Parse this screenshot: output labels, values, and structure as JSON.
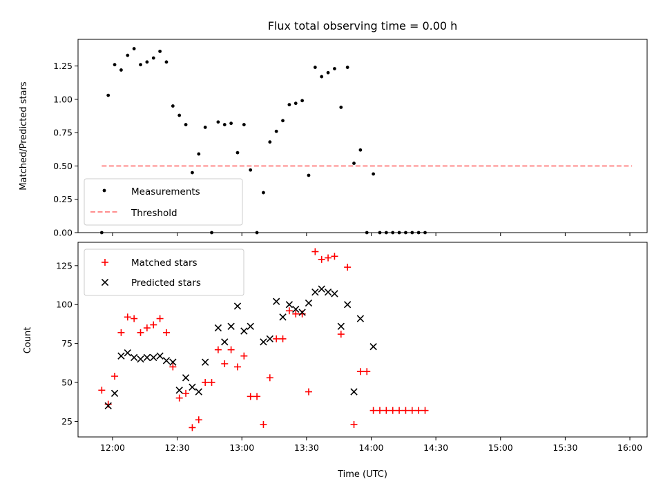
{
  "chart_data": [
    {
      "type": "scatter",
      "title": "Flux total observing time = 0.00 h",
      "xlabel": "",
      "ylabel": "Matched/Predicted stars",
      "ylim": [
        0,
        1.45
      ],
      "yticks": [
        "0.00",
        "0.25",
        "0.50",
        "0.75",
        "1.00",
        "1.25"
      ],
      "yticks_values": [
        0,
        0.25,
        0.5,
        0.75,
        1.0,
        1.25
      ],
      "legend_position": "lower-left",
      "grid": false,
      "series": [
        {
          "name": "Measurements",
          "marker": "dot",
          "color": "#000000",
          "points": [
            [
              "11:55",
              0.0
            ],
            [
              "11:58",
              1.03
            ],
            [
              "12:01",
              1.26
            ],
            [
              "12:04",
              1.22
            ],
            [
              "12:07",
              1.33
            ],
            [
              "12:10",
              1.38
            ],
            [
              "12:13",
              1.26
            ],
            [
              "12:16",
              1.28
            ],
            [
              "12:19",
              1.31
            ],
            [
              "12:22",
              1.36
            ],
            [
              "12:25",
              1.28
            ],
            [
              "12:28",
              0.95
            ],
            [
              "12:31",
              0.88
            ],
            [
              "12:34",
              0.81
            ],
            [
              "12:37",
              0.45
            ],
            [
              "12:40",
              0.59
            ],
            [
              "12:43",
              0.79
            ],
            [
              "12:46",
              0.0
            ],
            [
              "12:49",
              0.83
            ],
            [
              "12:52",
              0.81
            ],
            [
              "12:55",
              0.82
            ],
            [
              "12:58",
              0.6
            ],
            [
              "13:01",
              0.81
            ],
            [
              "13:04",
              0.47
            ],
            [
              "13:07",
              0.0
            ],
            [
              "13:10",
              0.3
            ],
            [
              "13:13",
              0.68
            ],
            [
              "13:16",
              0.76
            ],
            [
              "13:19",
              0.84
            ],
            [
              "13:22",
              0.96
            ],
            [
              "13:25",
              0.97
            ],
            [
              "13:28",
              0.99
            ],
            [
              "13:31",
              0.43
            ],
            [
              "13:34",
              1.24
            ],
            [
              "13:37",
              1.17
            ],
            [
              "13:40",
              1.2
            ],
            [
              "13:43",
              1.23
            ],
            [
              "13:46",
              0.94
            ],
            [
              "13:49",
              1.24
            ],
            [
              "13:52",
              0.52
            ],
            [
              "13:55",
              0.62
            ],
            [
              "13:58",
              0.0
            ],
            [
              "14:01",
              0.44
            ],
            [
              "14:04",
              0.0
            ],
            [
              "14:07",
              0.0
            ],
            [
              "14:10",
              0.0
            ],
            [
              "14:13",
              0.0
            ],
            [
              "14:16",
              0.0
            ],
            [
              "14:19",
              0.0
            ],
            [
              "14:22",
              0.0
            ],
            [
              "14:25",
              0.0
            ]
          ]
        },
        {
          "name": "Threshold",
          "marker": "dashed-line",
          "color": "#ff7f7f",
          "points": [
            [
              "11:55",
              0.5
            ],
            [
              "16:01",
              0.5
            ]
          ]
        }
      ]
    },
    {
      "type": "scatter",
      "title": "",
      "xlabel": "Time (UTC)",
      "ylabel": "Count",
      "ylim": [
        15,
        140
      ],
      "yticks": [
        "25",
        "50",
        "75",
        "100",
        "125"
      ],
      "yticks_values": [
        25,
        50,
        75,
        100,
        125
      ],
      "xticks": [
        "12:00",
        "12:30",
        "13:00",
        "13:30",
        "14:00",
        "14:30",
        "15:00",
        "15:30",
        "16:00"
      ],
      "xlim": [
        "11:44",
        "16:08"
      ],
      "legend_position": "upper-left",
      "grid": false,
      "series": [
        {
          "name": "Matched stars",
          "marker": "plus",
          "color": "#ff0000",
          "points": [
            [
              "11:55",
              45
            ],
            [
              "11:58",
              36
            ],
            [
              "12:01",
              54
            ],
            [
              "12:04",
              82
            ],
            [
              "12:07",
              92
            ],
            [
              "12:10",
              91
            ],
            [
              "12:13",
              82
            ],
            [
              "12:16",
              85
            ],
            [
              "12:19",
              87
            ],
            [
              "12:22",
              91
            ],
            [
              "12:25",
              82
            ],
            [
              "12:28",
              60
            ],
            [
              "12:31",
              40
            ],
            [
              "12:34",
              43
            ],
            [
              "12:37",
              21
            ],
            [
              "12:40",
              26
            ],
            [
              "12:43",
              50
            ],
            [
              "12:46",
              50
            ],
            [
              "12:49",
              71
            ],
            [
              "12:52",
              62
            ],
            [
              "12:55",
              71
            ],
            [
              "12:58",
              60
            ],
            [
              "13:01",
              67
            ],
            [
              "13:04",
              41
            ],
            [
              "13:07",
              41
            ],
            [
              "13:10",
              23
            ],
            [
              "13:13",
              53
            ],
            [
              "13:16",
              78
            ],
            [
              "13:19",
              78
            ],
            [
              "13:22",
              96
            ],
            [
              "13:25",
              94
            ],
            [
              "13:28",
              94
            ],
            [
              "13:31",
              44
            ],
            [
              "13:34",
              134
            ],
            [
              "13:37",
              129
            ],
            [
              "13:40",
              130
            ],
            [
              "13:43",
              131
            ],
            [
              "13:46",
              81
            ],
            [
              "13:49",
              124
            ],
            [
              "13:52",
              23
            ],
            [
              "13:55",
              57
            ],
            [
              "13:58",
              57
            ],
            [
              "14:01",
              32
            ],
            [
              "14:04",
              32
            ],
            [
              "14:07",
              32
            ],
            [
              "14:10",
              32
            ],
            [
              "14:13",
              32
            ],
            [
              "14:16",
              32
            ],
            [
              "14:19",
              32
            ],
            [
              "14:22",
              32
            ],
            [
              "14:25",
              32
            ]
          ]
        },
        {
          "name": "Predicted stars",
          "marker": "x",
          "color": "#000000",
          "points": [
            [
              "11:58",
              35
            ],
            [
              "12:01",
              43
            ],
            [
              "12:04",
              67
            ],
            [
              "12:07",
              69
            ],
            [
              "12:10",
              66
            ],
            [
              "12:13",
              65
            ],
            [
              "12:16",
              66
            ],
            [
              "12:19",
              66
            ],
            [
              "12:22",
              67
            ],
            [
              "12:25",
              64
            ],
            [
              "12:28",
              63
            ],
            [
              "12:31",
              45
            ],
            [
              "12:34",
              53
            ],
            [
              "12:37",
              47
            ],
            [
              "12:40",
              44
            ],
            [
              "12:43",
              63
            ],
            [
              "12:49",
              85
            ],
            [
              "12:52",
              76
            ],
            [
              "12:55",
              86
            ],
            [
              "12:58",
              99
            ],
            [
              "13:01",
              83
            ],
            [
              "13:04",
              86
            ],
            [
              "13:10",
              76
            ],
            [
              "13:13",
              78
            ],
            [
              "13:16",
              102
            ],
            [
              "13:19",
              92
            ],
            [
              "13:22",
              100
            ],
            [
              "13:25",
              97
            ],
            [
              "13:28",
              95
            ],
            [
              "13:31",
              101
            ],
            [
              "13:34",
              108
            ],
            [
              "13:37",
              110
            ],
            [
              "13:40",
              108
            ],
            [
              "13:43",
              107
            ],
            [
              "13:46",
              86
            ],
            [
              "13:49",
              100
            ],
            [
              "13:52",
              44
            ],
            [
              "13:55",
              91
            ],
            [
              "14:01",
              73
            ]
          ]
        }
      ]
    }
  ]
}
